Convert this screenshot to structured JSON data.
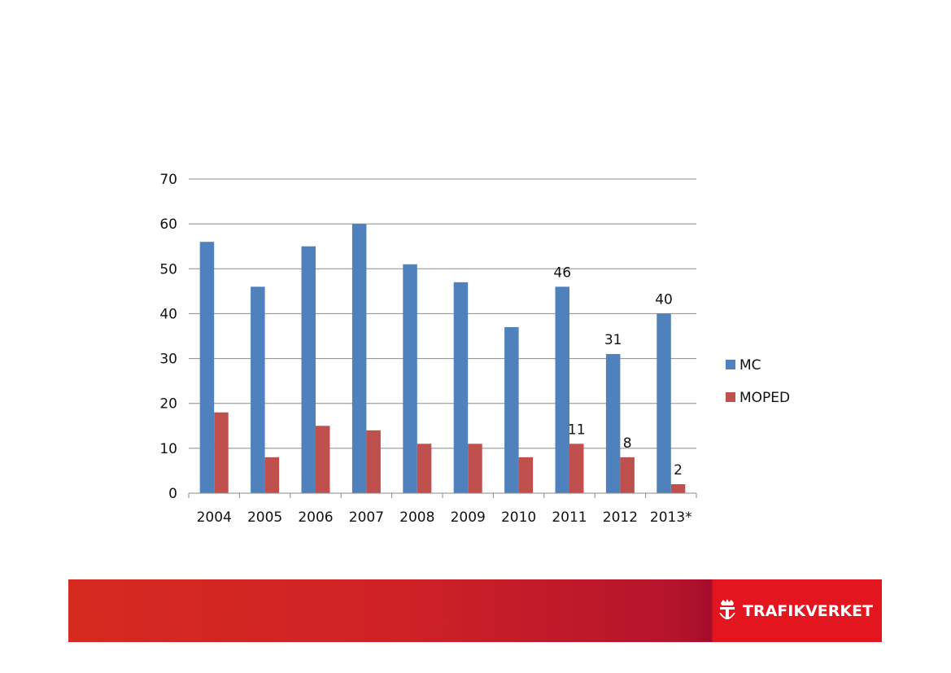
{
  "chart_data": {
    "type": "bar",
    "title": "",
    "xlabel": "",
    "ylabel": "",
    "categories": [
      "2004",
      "2005",
      "2006",
      "2007",
      "2008",
      "2009",
      "2010",
      "2011",
      "2012",
      "2013*"
    ],
    "series": [
      {
        "name": "MC",
        "color": "#4f81bd",
        "values": [
          56,
          46,
          55,
          60,
          51,
          47,
          37,
          46,
          31,
          40
        ]
      },
      {
        "name": "MOPED",
        "color": "#c0504d",
        "values": [
          18,
          8,
          15,
          14,
          11,
          11,
          8,
          11,
          8,
          2
        ]
      }
    ],
    "data_labels": [
      {
        "series": 0,
        "index": 7,
        "text": "46"
      },
      {
        "series": 0,
        "index": 8,
        "text": "31"
      },
      {
        "series": 0,
        "index": 9,
        "text": "40"
      },
      {
        "series": 1,
        "index": 7,
        "text": "11"
      },
      {
        "series": 1,
        "index": 8,
        "text": "8"
      },
      {
        "series": 1,
        "index": 9,
        "text": "2"
      }
    ],
    "ylim": [
      0,
      70
    ],
    "yticks": [
      0,
      10,
      20,
      30,
      40,
      50,
      60,
      70
    ],
    "grid": true,
    "legend": "right"
  },
  "footer": {
    "logo_text": "TRAFIKVERKET",
    "logo_icon": "crown-t-icon"
  }
}
